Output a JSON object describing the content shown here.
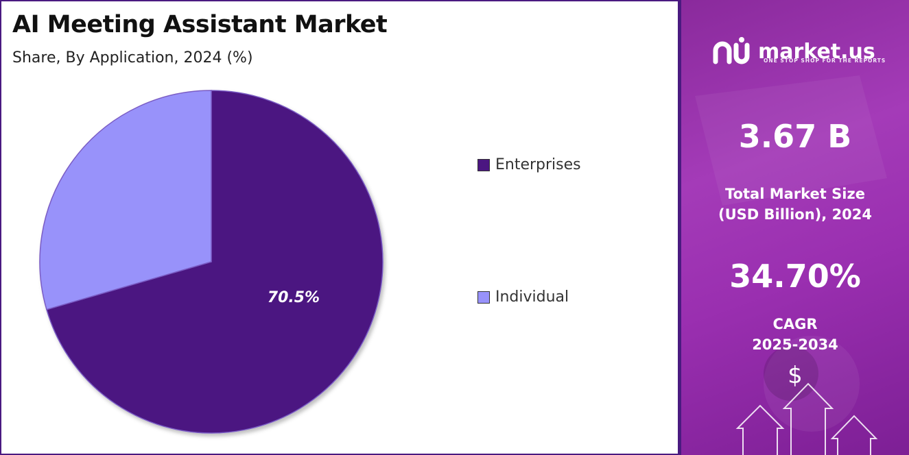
{
  "chart_data": {
    "type": "pie",
    "title": "AI Meeting Assistant Market",
    "subtitle": "Share, By Application, 2024 (%)",
    "categories": [
      "Enterprises",
      "Individual"
    ],
    "values": [
      70.5,
      29.5
    ],
    "colors": [
      "#4b1681",
      "#9892fa"
    ],
    "data_labels": [
      "70.5%",
      ""
    ],
    "legend_position": "right"
  },
  "side_panel": {
    "brand": "market.us",
    "tagline": "ONE STOP SHOP FOR THE REPORTS",
    "market_size_value": "3.67 B",
    "market_size_label_1": "Total Market Size",
    "market_size_label_2": "(USD Billion), 2024",
    "cagr_value": "34.70%",
    "cagr_label_1": "CAGR",
    "cagr_label_2": "2025-2034",
    "dollar_symbol": "$",
    "logo_icon": "market-us-logo-icon",
    "decor_icon": "growth-arrows-icon"
  }
}
